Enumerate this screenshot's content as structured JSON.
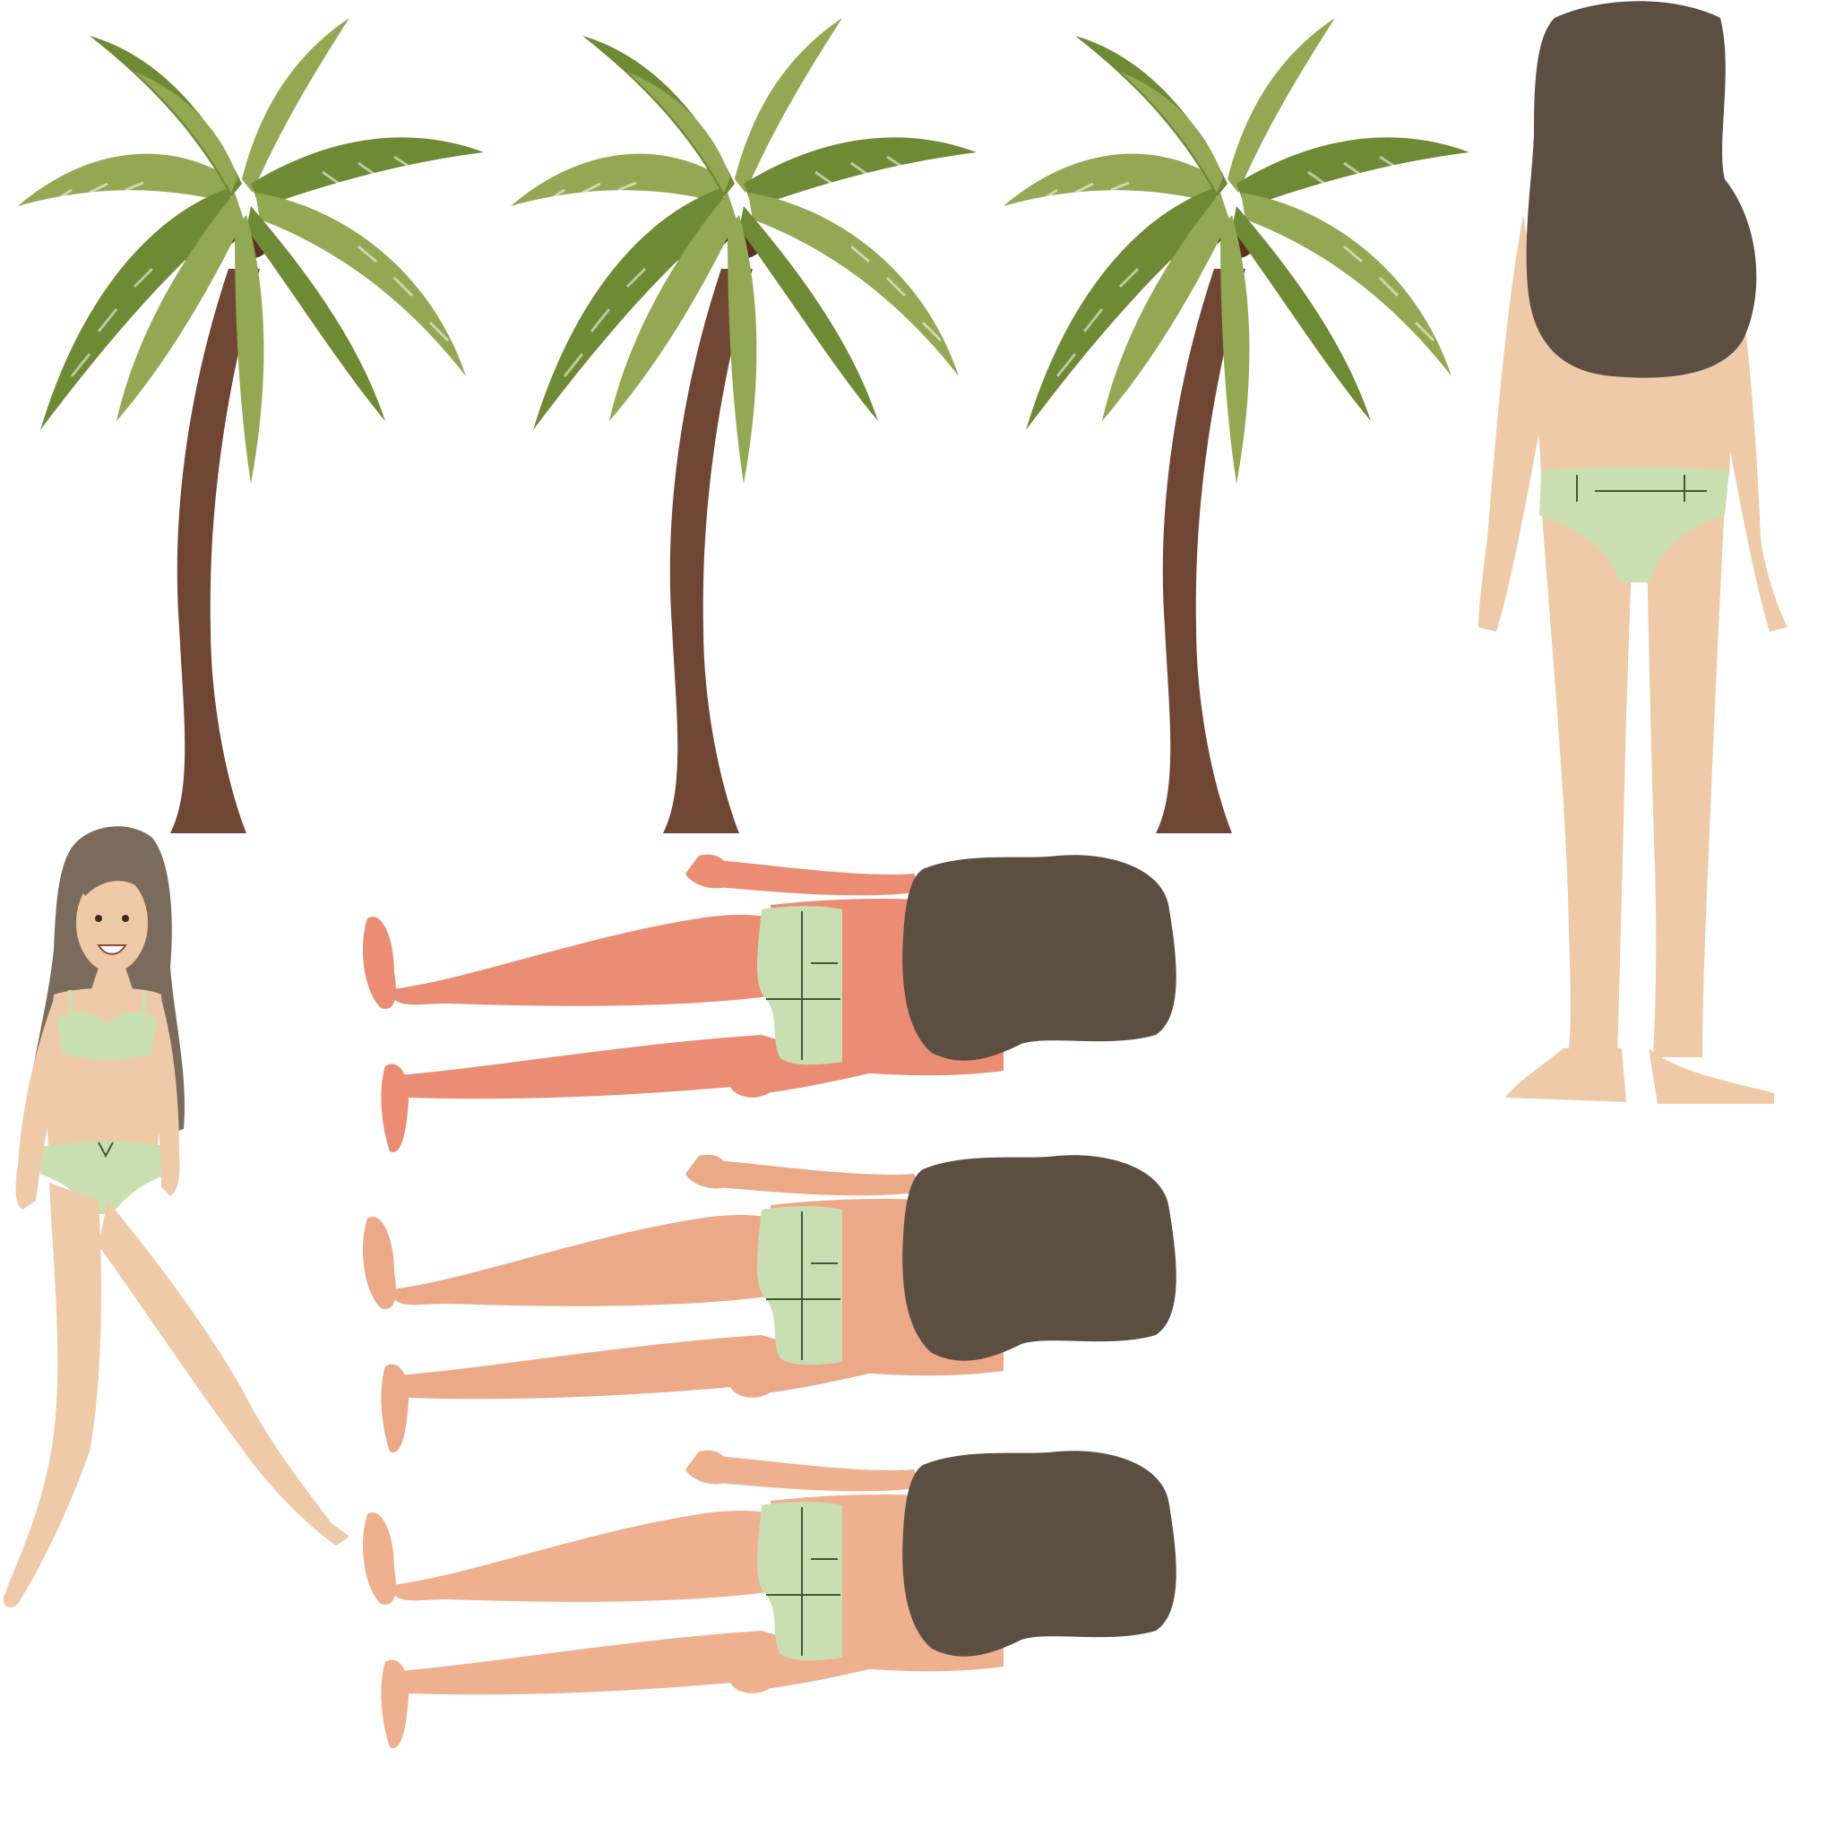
{
  "scene": {
    "background": "#ffffff",
    "palette": {
      "palm_leaf_light": "#93a852",
      "palm_leaf_dark": "#6e8a34",
      "palm_trunk": "#6f4634",
      "coconut": "#5a3220",
      "hair": "#5c4f42",
      "hair_front": "#7a6b5c",
      "skin_light": "#efcaa8",
      "skin_tan": "#eba988",
      "skin_red": "#ea8d74",
      "bikini": "#c9dfb2",
      "bikini_line": "#3e5a34"
    },
    "palm_trees": [
      {
        "label": "palm-tree-1",
        "icon": "palm-tree-icon"
      },
      {
        "label": "palm-tree-2",
        "icon": "palm-tree-icon"
      },
      {
        "label": "palm-tree-3",
        "icon": "palm-tree-icon"
      }
    ],
    "standing_back_figure": {
      "label": "woman-standing-back-view",
      "skin": "skin_light"
    },
    "walking_front_figure": {
      "label": "woman-walking-front-view",
      "skin": "skin_light"
    },
    "lying_figures": [
      {
        "label": "woman-lying-prone-sunburnt",
        "skin": "skin_red"
      },
      {
        "label": "woman-lying-prone-tanned",
        "skin": "skin_tan"
      },
      {
        "label": "woman-lying-prone-light-tan",
        "skin": "skin_tan"
      }
    ]
  }
}
